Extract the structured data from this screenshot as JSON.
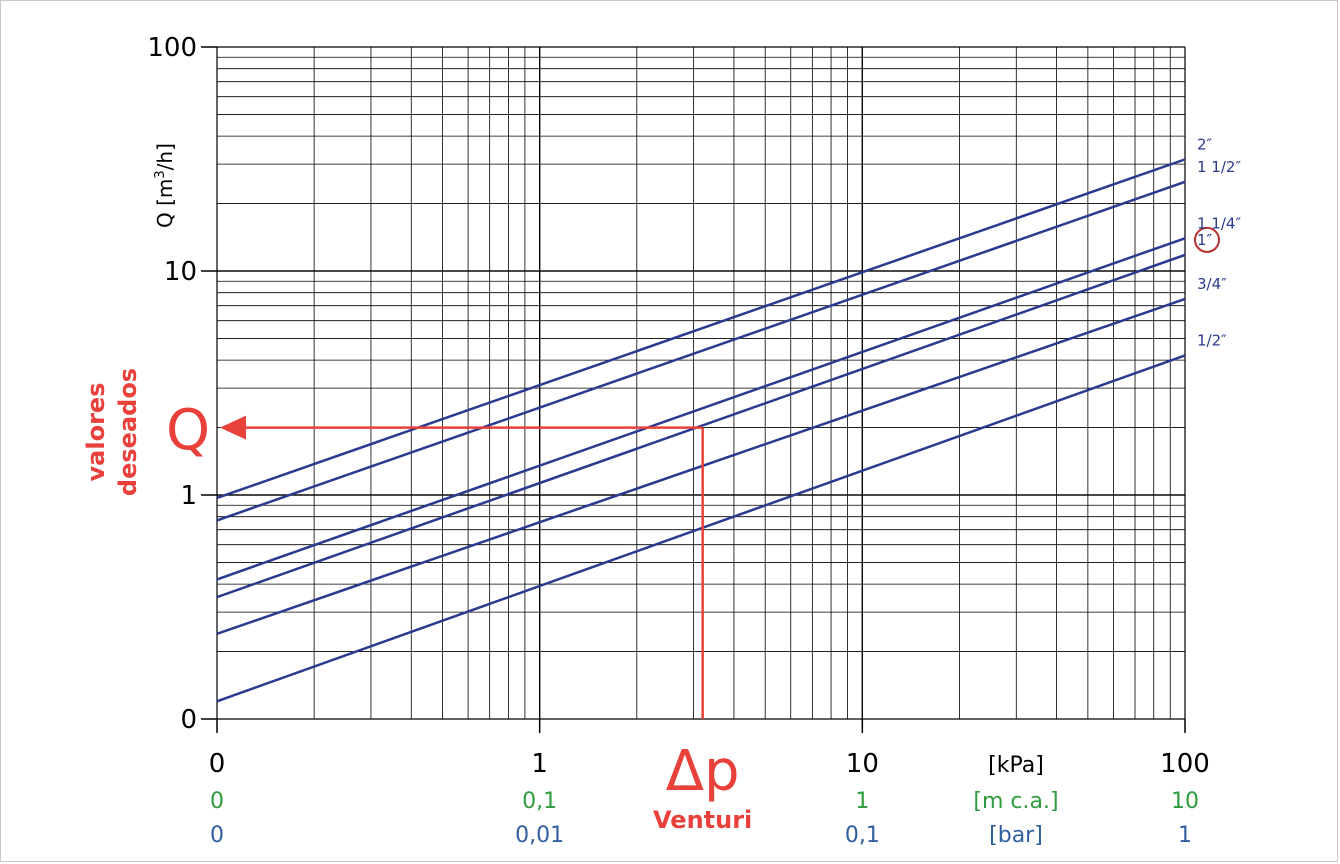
{
  "chart_data": {
    "type": "line",
    "x_scale": "log",
    "y_scale": "log",
    "xlim": [
      0.1,
      100
    ],
    "ylim": [
      0.1,
      100
    ],
    "ylabel_prefix": "Q [m",
    "ylabel_sup": "3",
    "ylabel_suffix": "/h]",
    "y_ticks": [
      {
        "value": 100,
        "label": "100"
      },
      {
        "value": 10,
        "label": "10"
      },
      {
        "value": 1,
        "label": "1"
      },
      {
        "value": 0.1,
        "label": "0"
      }
    ],
    "x_rows": [
      {
        "color": "#000000",
        "labels": [
          {
            "value": 0.1,
            "label": "0"
          },
          {
            "value": 1,
            "label": "1"
          },
          {
            "value": 10,
            "label": "10"
          },
          {
            "value": 100,
            "label": "100"
          }
        ],
        "unit": "[kPa]"
      },
      {
        "color": "#2e9b3e",
        "labels": [
          {
            "value": 0.1,
            "label": "0"
          },
          {
            "value": 1,
            "label": "0,1"
          },
          {
            "value": 10,
            "label": "1"
          },
          {
            "value": 100,
            "label": "10"
          }
        ],
        "unit": "[m c.a.]"
      },
      {
        "color": "#2f5f9e",
        "labels": [
          {
            "value": 0.1,
            "label": "0"
          },
          {
            "value": 1,
            "label": "0,01"
          },
          {
            "value": 10,
            "label": "0,1"
          },
          {
            "value": 100,
            "label": "1"
          }
        ],
        "unit": "[bar]"
      }
    ],
    "series": [
      {
        "name": "2″",
        "x": [
          0.1,
          100
        ],
        "y": [
          0.97,
          31.5
        ]
      },
      {
        "name": "1 1/2″",
        "x": [
          0.1,
          100
        ],
        "y": [
          0.77,
          25
        ]
      },
      {
        "name": "1 1/4″",
        "x": [
          0.1,
          100
        ],
        "y": [
          0.42,
          14
        ]
      },
      {
        "name": "1″",
        "x": [
          0.1,
          100
        ],
        "y": [
          0.35,
          11.8
        ]
      },
      {
        "name": "3/4″",
        "x": [
          0.1,
          100
        ],
        "y": [
          0.24,
          7.5
        ]
      },
      {
        "name": "1/2″",
        "x": [
          0.1,
          100
        ],
        "y": [
          0.12,
          4.2
        ]
      }
    ],
    "line_color": "#2b3a8f",
    "highlighted_series": "1″",
    "annotation": {
      "color": "#e8403a",
      "x_value": 3.2,
      "y_value": 2,
      "delta_label": "Δp",
      "delta_sublabel": "Venturi",
      "q_label": "Q",
      "side_label_1": "valores",
      "side_label_2": "deseados"
    },
    "grid": true
  }
}
